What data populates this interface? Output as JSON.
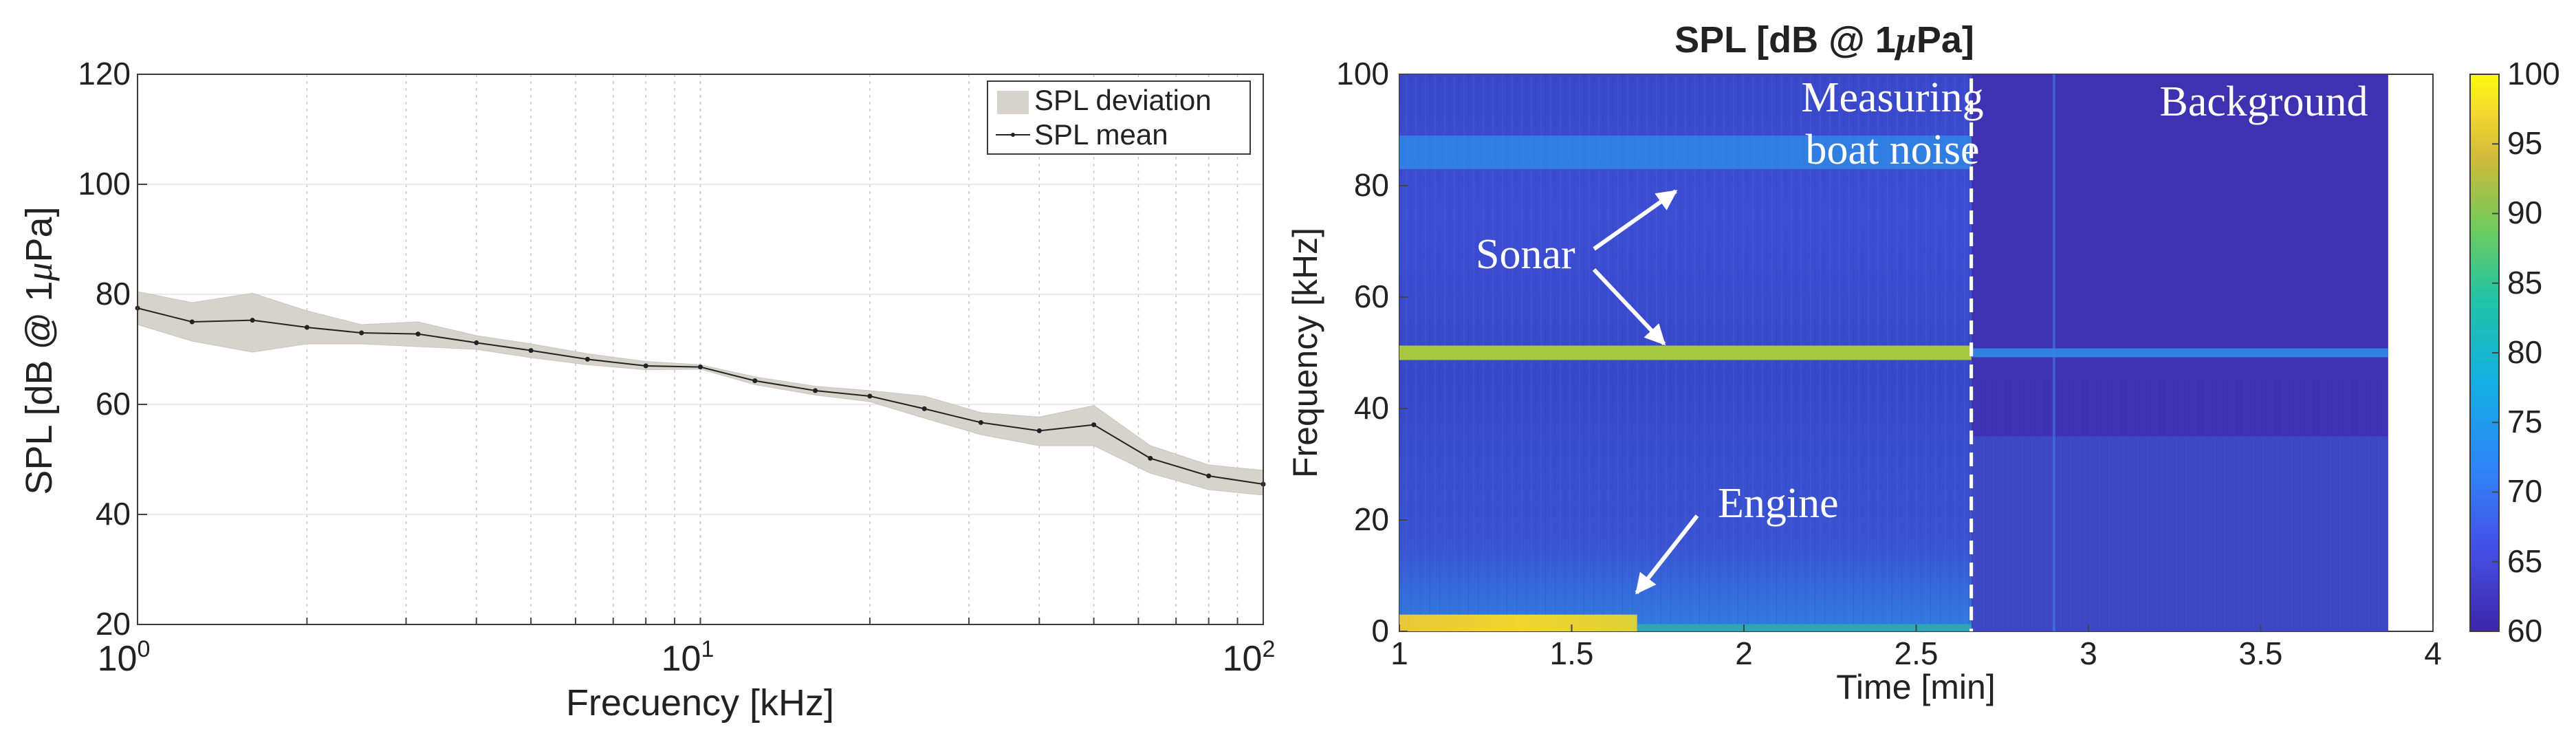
{
  "left": {
    "type": "line",
    "ylabel_main": "SPL [dB @ 1",
    "ylabel_mu": "μ",
    "ylabel_tail": "Pa]",
    "xlabel": "Frecuency [kHz]",
    "xscale": "log",
    "xlim": [
      1,
      100
    ],
    "ylim": [
      20,
      120
    ],
    "yticks": [
      "20",
      "40",
      "60",
      "80",
      "100",
      "120"
    ],
    "xticks": [
      {
        "base": "10",
        "exp": "0",
        "value": 1
      },
      {
        "base": "10",
        "exp": "1",
        "value": 10
      },
      {
        "base": "10",
        "exp": "2",
        "value": 100
      }
    ],
    "legend": [
      "SPL deviation",
      "SPL mean"
    ],
    "legend_position": "top-right",
    "grid": true,
    "series": [
      {
        "name": "SPL mean",
        "x": [
          1,
          1.25,
          1.6,
          2,
          2.5,
          3.15,
          4,
          5,
          6.3,
          8,
          10,
          12.5,
          16,
          20,
          25,
          31.5,
          40,
          50,
          63,
          80,
          100
        ],
        "values": [
          77.5,
          75,
          75.3,
          74,
          73,
          72.8,
          71.2,
          69.8,
          68.2,
          67,
          66.8,
          64.3,
          62.5,
          61.5,
          59.2,
          56.7,
          55.2,
          56.3,
          50.2,
          47,
          45.5
        ],
        "upper": [
          80.5,
          78.5,
          80.2,
          77,
          74.5,
          75,
          72.5,
          71,
          69.2,
          67.8,
          67.2,
          65,
          63.3,
          62.5,
          61.5,
          58.5,
          57.7,
          59.8,
          52.5,
          49,
          48
        ],
        "lower": [
          74.5,
          71.5,
          69.5,
          71,
          71,
          70.5,
          70,
          68.5,
          67.2,
          66.3,
          66.4,
          63.6,
          61.7,
          60.5,
          57.5,
          54.5,
          52.5,
          52.5,
          47.5,
          44.5,
          43.5
        ]
      }
    ],
    "colors": {
      "band": "#d6d3cd",
      "band_edge": "#c9c5bd",
      "line": "#222222"
    }
  },
  "right": {
    "type": "heatmap",
    "title_main": "SPL [dB @ 1",
    "title_mu": "μ",
    "title_tail": "Pa]",
    "xlabel": "Time [min]",
    "ylabel": "Frequency [kHz]",
    "xlim": [
      1,
      4
    ],
    "ylim": [
      0,
      100
    ],
    "xticks": [
      "1",
      "1.5",
      "2",
      "2.5",
      "3",
      "3.5",
      "4"
    ],
    "yticks": [
      "0",
      "20",
      "40",
      "60",
      "80",
      "100"
    ],
    "data_end_min": 3.87,
    "divider_min": 2.66,
    "clim": [
      60,
      100
    ],
    "colorbar_ticks": [
      "60",
      "65",
      "70",
      "75",
      "80",
      "85",
      "90",
      "95",
      "100"
    ],
    "bands": [
      {
        "label": "sonar high",
        "freq_khz": 86,
        "level_db": 73
      },
      {
        "label": "sonar low",
        "freq_khz": 50,
        "level_db": 88
      },
      {
        "label": "engine",
        "freq_khz": 1,
        "level_db": 95,
        "until_min": 1.69
      }
    ],
    "annotations": {
      "measuring_line1": "Measuring",
      "measuring_line2": "boat noise",
      "background": "Background",
      "sonar": "Sonar",
      "engine": "Engine"
    }
  }
}
